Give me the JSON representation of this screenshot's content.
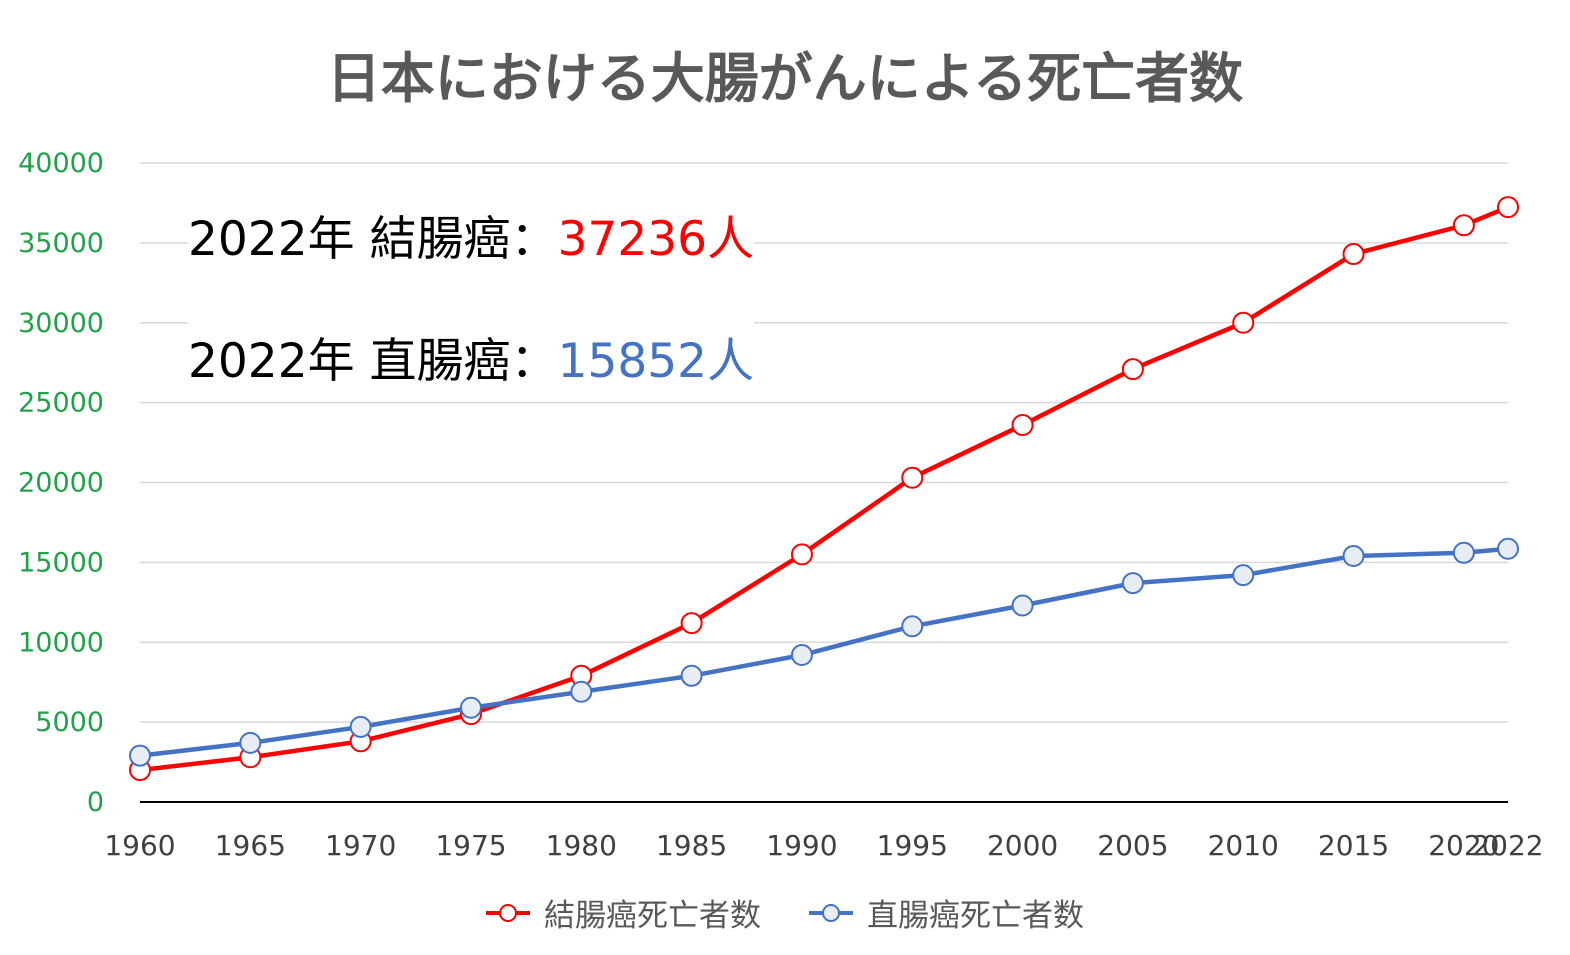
{
  "chart_data": {
    "type": "line",
    "title": "日本における大腸がんによる死亡者数",
    "x": [
      "1960",
      "1965",
      "1970",
      "1975",
      "1980",
      "1985",
      "1990",
      "1995",
      "2000",
      "2005",
      "2010",
      "2015",
      "2020",
      "2022"
    ],
    "series": [
      {
        "name": "結腸癌死亡者数",
        "color": "#ff0000",
        "marker_fill": "#ffffff",
        "values": [
          2000,
          2800,
          3800,
          5500,
          7900,
          11200,
          15500,
          20300,
          23600,
          27100,
          30000,
          34300,
          36100,
          37236
        ]
      },
      {
        "name": "直腸癌死亡者数",
        "color": "#4472c4",
        "marker_fill": "#e8ecf3",
        "values": [
          2900,
          3700,
          4700,
          5900,
          6900,
          7900,
          9200,
          11000,
          12300,
          13700,
          14200,
          15400,
          15600,
          15852
        ]
      }
    ],
    "ylim": [
      0,
      40000
    ],
    "yticks": [
      "0",
      "5000",
      "10000",
      "15000",
      "20000",
      "25000",
      "30000",
      "35000",
      "40000"
    ],
    "grid": true,
    "legend_position": "bottom",
    "tick_color": "#21a24a"
  },
  "annotations": [
    {
      "prefix": "2022年 結腸癌：",
      "value": "37236人",
      "value_color": "#ff0000"
    },
    {
      "prefix": "2022年 直腸癌：",
      "value": "15852人",
      "value_color": "#4472c4"
    }
  ]
}
